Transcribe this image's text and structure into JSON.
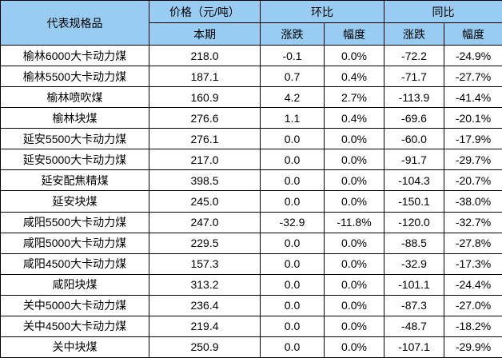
{
  "table": {
    "colors": {
      "header_bg": "#99CCF2",
      "border": "#000000",
      "text": "#000000",
      "body_bg": "#FFFFFF"
    },
    "headers": {
      "col_product": "代表规格品",
      "group_price": "价格（元/吨）",
      "group_mom": "环比",
      "group_yoy": "同比",
      "sub_current": "本期",
      "sub_mom_change": "涨跌",
      "sub_mom_pct": "幅度",
      "sub_yoy_change": "涨跌",
      "sub_yoy_pct": "幅度"
    },
    "rows": [
      {
        "name": "榆林6000大卡动力煤",
        "current": "218.0",
        "mom_change": "-0.1",
        "mom_pct": "0.0%",
        "yoy_change": "-72.2",
        "yoy_pct": "-24.9%"
      },
      {
        "name": "榆林5500大卡动力煤",
        "current": "187.1",
        "mom_change": "0.7",
        "mom_pct": "0.4%",
        "yoy_change": "-71.7",
        "yoy_pct": "-27.7%"
      },
      {
        "name": "榆林喷吹煤",
        "current": "160.9",
        "mom_change": "4.2",
        "mom_pct": "2.7%",
        "yoy_change": "-113.9",
        "yoy_pct": "-41.4%"
      },
      {
        "name": "榆林块煤",
        "current": "276.6",
        "mom_change": "1.1",
        "mom_pct": "0.4%",
        "yoy_change": "-69.6",
        "yoy_pct": "-20.1%"
      },
      {
        "name": "延安5500大卡动力煤",
        "current": "276.1",
        "mom_change": "0.0",
        "mom_pct": "0.0%",
        "yoy_change": "-60.0",
        "yoy_pct": "-17.9%"
      },
      {
        "name": "延安5000大卡动力煤",
        "current": "217.0",
        "mom_change": "0.0",
        "mom_pct": "0.0%",
        "yoy_change": "-91.7",
        "yoy_pct": "-29.7%"
      },
      {
        "name": "延安配焦精煤",
        "current": "398.5",
        "mom_change": "0.0",
        "mom_pct": "0.0%",
        "yoy_change": "-104.3",
        "yoy_pct": "-20.7%"
      },
      {
        "name": "延安块煤",
        "current": "245.0",
        "mom_change": "0.0",
        "mom_pct": "0.0%",
        "yoy_change": "-150.1",
        "yoy_pct": "-38.0%"
      },
      {
        "name": "咸阳5500大卡动力煤",
        "current": "247.0",
        "mom_change": "-32.9",
        "mom_pct": "-11.8%",
        "yoy_change": "-120.0",
        "yoy_pct": "-32.7%"
      },
      {
        "name": "咸阳5000大卡动力煤",
        "current": "229.5",
        "mom_change": "0.0",
        "mom_pct": "0.0%",
        "yoy_change": "-88.5",
        "yoy_pct": "-27.8%"
      },
      {
        "name": "咸阳4500大卡动力煤",
        "current": "157.3",
        "mom_change": "0.0",
        "mom_pct": "0.0%",
        "yoy_change": "-32.9",
        "yoy_pct": "-17.3%"
      },
      {
        "name": "咸阳块煤",
        "current": "313.2",
        "mom_change": "0.0",
        "mom_pct": "0.0%",
        "yoy_change": "-101.1",
        "yoy_pct": "-24.4%"
      },
      {
        "name": "关中5000大卡动力煤",
        "current": "236.4",
        "mom_change": "0.0",
        "mom_pct": "0.0%",
        "yoy_change": "-87.3",
        "yoy_pct": "-27.0%"
      },
      {
        "name": "关中4500大卡动力煤",
        "current": "219.4",
        "mom_change": "0.0",
        "mom_pct": "0.0%",
        "yoy_change": "-48.7",
        "yoy_pct": "-18.2%"
      },
      {
        "name": "关中块煤",
        "current": "250.9",
        "mom_change": "0.0",
        "mom_pct": "0.0%",
        "yoy_change": "-107.1",
        "yoy_pct": "-29.9%"
      }
    ]
  }
}
